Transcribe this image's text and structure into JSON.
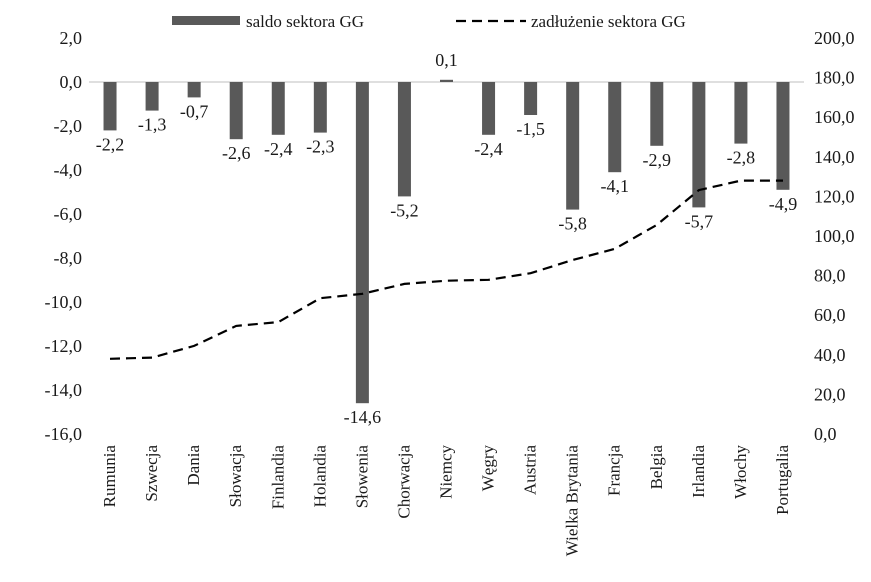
{
  "chart_data": {
    "type": "bar",
    "title": "",
    "xlabel": "",
    "ylabel": "",
    "categories": [
      "Rumunia",
      "Szwecja",
      "Dania",
      "Słowacja",
      "Finlandia",
      "Holandia",
      "Słowenia",
      "Chorwacja",
      "Niemcy",
      "Węgry",
      "Austria",
      "Wielka Brytania",
      "Francja",
      "Belgia",
      "Irlandia",
      "Włochy",
      "Portugalia"
    ],
    "series": [
      {
        "name": "saldo sektora GG",
        "type": "bar",
        "axis": "left",
        "color": "#595959",
        "values": [
          -2.2,
          -1.3,
          -0.7,
          -2.6,
          -2.4,
          -2.3,
          -14.6,
          -5.2,
          0.1,
          -2.4,
          -1.5,
          -5.8,
          -4.1,
          -2.9,
          -5.7,
          -2.8,
          -4.9
        ],
        "labels": [
          "-2,2",
          "-1,3",
          "-0,7",
          "-2,6",
          "-2,4",
          "-2,3",
          "-14,6",
          "-5,2",
          "0,1",
          "-2,4",
          "-1,5",
          "-5,8",
          "-4,1",
          "-2,9",
          "-5,7",
          "-2,8",
          "-4,9"
        ]
      },
      {
        "name": "zadłużenie sektora GG",
        "type": "line",
        "style": "dashed",
        "axis": "right",
        "color": "#000000",
        "values": [
          38,
          38.6,
          44.5,
          54.6,
          56.5,
          68.6,
          70.8,
          75.8,
          77.4,
          77.9,
          81.2,
          87.9,
          93.5,
          105.6,
          123.2,
          128,
          128
        ]
      }
    ],
    "y_left": {
      "ylim": [
        -16,
        2
      ],
      "ticks": [
        2,
        0,
        -2,
        -4,
        -6,
        -8,
        -10,
        -12,
        -14,
        -16
      ],
      "tick_labels": [
        "2,0",
        "0,0",
        "-2,0",
        "-4,0",
        "-6,0",
        "-8,0",
        "-10,0",
        "-12,0",
        "-14,0",
        "-16,0"
      ]
    },
    "y_right": {
      "ylim": [
        0,
        200
      ],
      "ticks": [
        200,
        180,
        160,
        140,
        120,
        100,
        80,
        60,
        40,
        20,
        0
      ],
      "tick_labels": [
        "200,0",
        "180,0",
        "160,0",
        "140,0",
        "120,0",
        "100,0",
        "80,0",
        "60,0",
        "40,0",
        "20,0",
        "0,0"
      ]
    },
    "grid": false,
    "legend": {
      "position": "top"
    }
  }
}
